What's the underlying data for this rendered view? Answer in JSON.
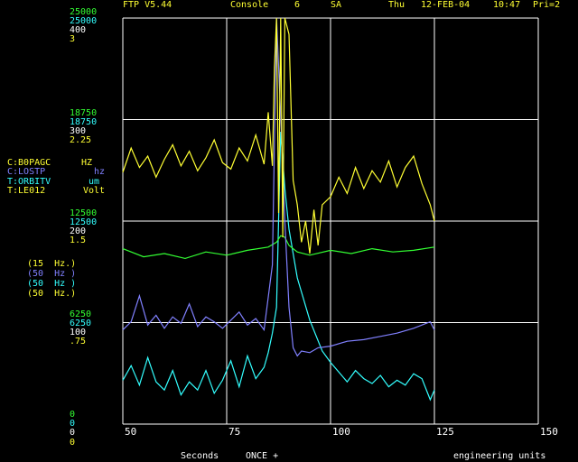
{
  "header": {
    "app": "FTP V5.44",
    "console": "Console",
    "console_num": "6",
    "mode": "SA",
    "day": "Thu",
    "date": "12-FEB-04",
    "time": "10:47",
    "priority": "Pri=2"
  },
  "axis_labels": {
    "top": [
      "25000",
      "25000",
      "400",
      "3"
    ],
    "upper_mid": [
      "18750",
      "18750",
      "300",
      "2.25"
    ],
    "mid": [
      "12500",
      "12500",
      "200",
      "1.5"
    ],
    "lower_mid": [
      "6250",
      "6250",
      "100",
      ".75"
    ],
    "bottom": [
      "0",
      "0",
      "0",
      "0"
    ]
  },
  "channels": [
    {
      "name": "C:B0PAGC",
      "unit": "HZ",
      "color": "#ffff33",
      "rate": "(15  Hz.)"
    },
    {
      "name": "C:LOSTP",
      "unit": "hz",
      "color": "#8080ff",
      "rate": "(50  Hz )"
    },
    {
      "name": "T:ORBITV",
      "unit": "um",
      "color": "#33ffff",
      "rate": "(50  Hz )"
    },
    {
      "name": "T:LE012",
      "unit": "Volt",
      "color": "#ffff33",
      "rate": "(50  Hz.)"
    }
  ],
  "footer": {
    "xlabel": "Seconds",
    "trigger": "ONCE +",
    "units": "engineering units"
  },
  "chart_data": {
    "type": "line",
    "xlim": [
      50,
      150
    ],
    "x_ticks": [
      "50",
      "75",
      "100",
      "125",
      "150"
    ],
    "ylim_normalized": [
      0,
      1
    ],
    "grid": true,
    "series": [
      {
        "name": "C:B0PAGC",
        "color": "#ffff33",
        "x": [
          50,
          52,
          54,
          56,
          58,
          60,
          62,
          64,
          66,
          68,
          70,
          72,
          74,
          76,
          78,
          80,
          82,
          84,
          85,
          86,
          86.5,
          87,
          87.5,
          88,
          88.5,
          89,
          90,
          91,
          92,
          93,
          94,
          95,
          96,
          97,
          98,
          100,
          102,
          104,
          106,
          108,
          110,
          112,
          114,
          116,
          118,
          120,
          122,
          124,
          125
        ],
        "y": [
          15500,
          17000,
          15800,
          16500,
          15200,
          16300,
          17200,
          15900,
          16800,
          15600,
          16400,
          17500,
          16100,
          15700,
          17000,
          16200,
          17800,
          16000,
          19200,
          15900,
          22000,
          25000,
          13000,
          25000,
          11500,
          25000,
          24000,
          15000,
          13500,
          11200,
          12500,
          10500,
          13200,
          11000,
          13500,
          14000,
          15200,
          14200,
          15800,
          14500,
          15600,
          14900,
          16200,
          14600,
          15800,
          16500,
          14800,
          13500,
          12500
        ]
      },
      {
        "name": "C:LOSTP",
        "color": "#33ff33",
        "x": [
          50,
          55,
          60,
          65,
          70,
          75,
          80,
          85,
          87,
          88,
          89,
          90,
          92,
          95,
          100,
          105,
          110,
          115,
          120,
          125
        ],
        "y": [
          10800,
          10300,
          10500,
          10200,
          10600,
          10400,
          10700,
          10900,
          11200,
          11600,
          11500,
          11000,
          10600,
          10400,
          10700,
          10500,
          10800,
          10600,
          10700,
          10900
        ]
      },
      {
        "name": "T:ORBITV",
        "color": "#8080ff",
        "x": [
          50,
          52,
          54,
          56,
          58,
          60,
          62,
          64,
          66,
          68,
          70,
          72,
          74,
          76,
          78,
          80,
          82,
          84,
          85,
          86,
          87,
          88,
          89,
          90,
          91,
          92,
          93,
          95,
          97,
          100,
          104,
          108,
          112,
          116,
          120,
          124,
          125
        ],
        "y": [
          5800,
          6300,
          7900,
          6100,
          6700,
          5900,
          6600,
          6200,
          7400,
          6000,
          6600,
          6300,
          5900,
          6400,
          6900,
          6100,
          6500,
          5800,
          7800,
          9800,
          25000,
          19000,
          12500,
          7200,
          4700,
          4200,
          4500,
          4400,
          4700,
          4800,
          5100,
          5200,
          5400,
          5600,
          5900,
          6300,
          5800
        ]
      },
      {
        "name": "T:LE012",
        "color": "#33ffff",
        "x": [
          50,
          52,
          54,
          56,
          58,
          60,
          62,
          64,
          66,
          68,
          70,
          72,
          74,
          76,
          78,
          80,
          82,
          84,
          85,
          86,
          87,
          88,
          89,
          90,
          92,
          95,
          98,
          100,
          102,
          104,
          106,
          108,
          110,
          112,
          114,
          116,
          118,
          120,
          122,
          124,
          125
        ],
        "y": [
          2700,
          3600,
          2400,
          4100,
          2600,
          2100,
          3300,
          1800,
          2600,
          2100,
          3300,
          1900,
          2700,
          3900,
          2300,
          4200,
          2800,
          3500,
          4400,
          5600,
          7200,
          18000,
          14500,
          12000,
          9000,
          6400,
          4500,
          3800,
          3200,
          2600,
          3300,
          2800,
          2500,
          3000,
          2300,
          2700,
          2400,
          3100,
          2800,
          1500,
          2100
        ]
      }
    ]
  }
}
